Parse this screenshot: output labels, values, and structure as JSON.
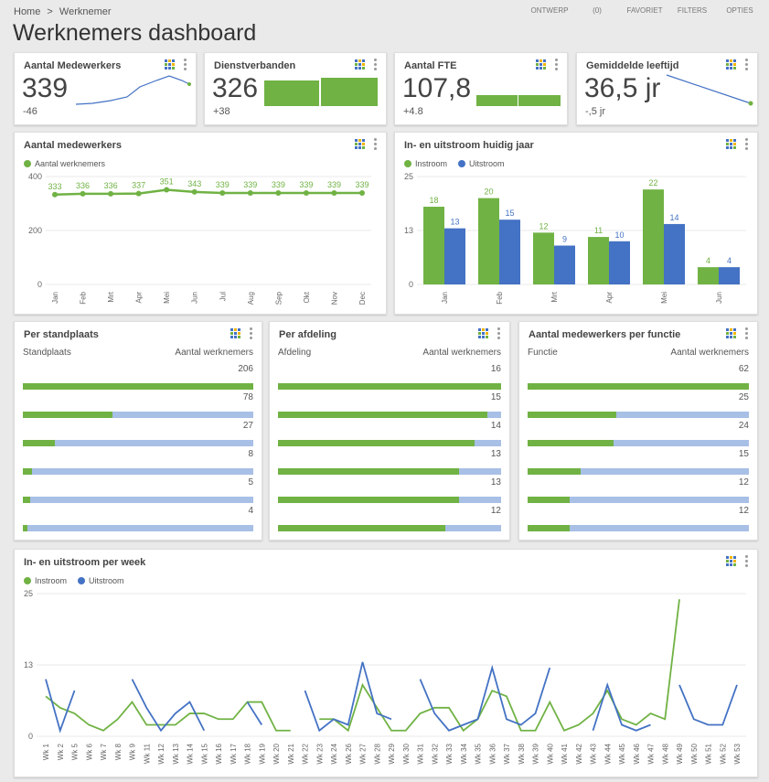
{
  "breadcrumb": {
    "home": "Home",
    "sep": ">",
    "current": "Werknemer"
  },
  "toolbar": {
    "ontwerp": "ONTWERP",
    "count": "(0)",
    "favoriet": "FAVORIET",
    "filters": "FILTERS",
    "opties": "OPTIES"
  },
  "page_title": "Werknemers dashboard",
  "colors": {
    "green": "#70b244",
    "blue": "#4472c4",
    "lightblue": "#a8bfe6"
  },
  "icons": [
    "grid-chart-icon",
    "more-vert-icon"
  ],
  "kpis": [
    {
      "title": "Aantal Medewerkers",
      "value": "339",
      "delta": "-46"
    },
    {
      "title": "Dienstverbanden",
      "value": "326",
      "delta": "+38"
    },
    {
      "title": "Aantal FTE",
      "value": "107,8",
      "delta": "+4.8"
    },
    {
      "title": "Gemiddelde leeftijd",
      "value": "36,5 jr",
      "delta": "-,5 jr"
    }
  ],
  "employees_card": {
    "title": "Aantal medewerkers",
    "legend": "Aantal werknemers"
  },
  "inout_card": {
    "title": "In- en uitstroom huidig jaar",
    "legend_in": "Instroom",
    "legend_out": "Uitstroom"
  },
  "standplaats": {
    "title": "Per standplaats",
    "col1": "Standplaats",
    "col2": "Aantal werknemers",
    "values": [
      "206",
      "78",
      "27",
      "8",
      "5",
      "4"
    ],
    "fills": [
      1,
      0.39,
      0.14,
      0.04,
      0.03,
      0.02
    ]
  },
  "afdeling": {
    "title": "Per afdeling",
    "col1": "Afdeling",
    "col2": "Aantal werknemers",
    "values": [
      "16",
      "15",
      "14",
      "13",
      "13",
      "12"
    ],
    "fills": [
      1,
      0.94,
      0.88,
      0.81,
      0.81,
      0.75
    ]
  },
  "functie": {
    "title": "Aantal medewerkers per functie",
    "col1": "Functie",
    "col2": "Aantal werknemers",
    "values": [
      "62",
      "25",
      "24",
      "15",
      "12",
      "12"
    ],
    "fills": [
      1,
      0.4,
      0.39,
      0.24,
      0.19,
      0.19
    ]
  },
  "weekly_card": {
    "title": "In- en uitstroom per week",
    "legend_in": "Instroom",
    "legend_out": "Uitstroom"
  },
  "chart_data": [
    {
      "type": "line",
      "title": "Aantal medewerkers",
      "categories": [
        "Jan",
        "Feb",
        "Mrt",
        "Apr",
        "Mei",
        "Jun",
        "Jul",
        "Aug",
        "Sep",
        "Okt",
        "Nov",
        "Dec"
      ],
      "series": [
        {
          "name": "Aantal werknemers",
          "values": [
            333,
            336,
            336,
            337,
            351,
            343,
            339,
            339,
            339,
            339,
            339,
            339
          ]
        }
      ],
      "ylim": [
        0,
        400
      ],
      "yticks": [
        "0",
        "200",
        "400"
      ]
    },
    {
      "type": "bar",
      "title": "In- en uitstroom huidig jaar",
      "categories": [
        "Jan",
        "Feb",
        "Mrt",
        "Apr",
        "Mei",
        "Jun"
      ],
      "series": [
        {
          "name": "Instroom",
          "values": [
            18,
            20,
            12,
            11,
            22,
            4
          ]
        },
        {
          "name": "Uitstroom",
          "values": [
            13,
            15,
            9,
            10,
            14,
            4
          ]
        }
      ],
      "ylim": [
        0,
        25
      ],
      "yticks": [
        "0",
        "13",
        "25"
      ]
    },
    {
      "type": "line",
      "title": "In- en uitstroom per week",
      "categories": [
        "Wk 1",
        "Wk 2",
        "Wk 5",
        "Wk 6",
        "Wk 7",
        "Wk 8",
        "Wk 9",
        "Wk 11",
        "Wk 12",
        "Wk 13",
        "Wk 14",
        "Wk 15",
        "Wk 16",
        "Wk 17",
        "Wk 18",
        "Wk 19",
        "Wk 20",
        "Wk 21",
        "Wk 22",
        "Wk 23",
        "Wk 24",
        "Wk 26",
        "Wk 27",
        "Wk 28",
        "Wk 29",
        "Wk 30",
        "Wk 31",
        "Wk 32",
        "Wk 33",
        "Wk 34",
        "Wk 35",
        "Wk 36",
        "Wk 37",
        "Wk 38",
        "Wk 39",
        "Wk 40",
        "Wk 41",
        "Wk 42",
        "Wk 43",
        "Wk 44",
        "Wk 45",
        "Wk 46",
        "Wk 47",
        "Wk 48",
        "Wk 49",
        "Wk 50",
        "Wk 51",
        "Wk 52",
        "Wk 53"
      ],
      "series": [
        {
          "name": "Instroom",
          "values": [
            7,
            5,
            4,
            2,
            1,
            3,
            6,
            2,
            2,
            2,
            4,
            4,
            3,
            3,
            6,
            6,
            1,
            1,
            null,
            3,
            3,
            1,
            9,
            5,
            1,
            1,
            4,
            5,
            5,
            1,
            3,
            8,
            7,
            1,
            1,
            6,
            1,
            2,
            4,
            8,
            3,
            2,
            4,
            3,
            24,
            null,
            null,
            null,
            null
          ]
        },
        {
          "name": "Uitstroom",
          "values": [
            10,
            1,
            8,
            null,
            null,
            null,
            10,
            5,
            1,
            4,
            6,
            1,
            null,
            null,
            6,
            2,
            null,
            null,
            8,
            1,
            3,
            2,
            13,
            4,
            3,
            null,
            10,
            4,
            1,
            2,
            3,
            12,
            3,
            2,
            4,
            12,
            null,
            null,
            1,
            9,
            2,
            1,
            2,
            null,
            9,
            3,
            2,
            2,
            9
          ]
        }
      ],
      "ylim": [
        0,
        25
      ],
      "yticks": [
        "0",
        "13",
        "25"
      ]
    }
  ]
}
